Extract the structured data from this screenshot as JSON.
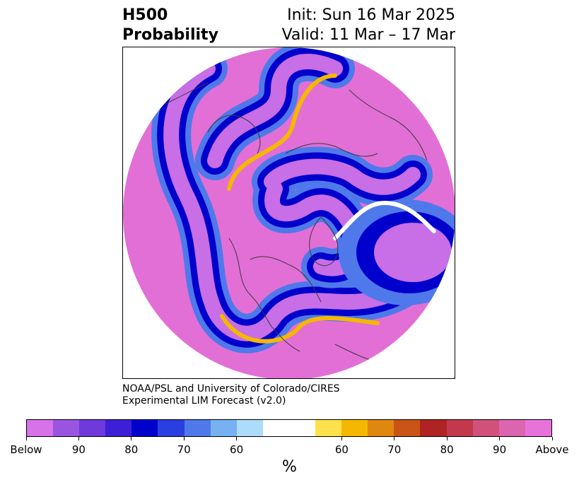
{
  "title": {
    "left_line1": "H500",
    "left_line2": "Probability",
    "right_line1": "Init: Sun 16 Mar 2025",
    "right_line2": "Valid: 11 Mar – 17 Mar"
  },
  "credit": {
    "line1": "NOAA/PSL and University of Colorado/CIRES",
    "line2": "Experimental LIM Forecast (v2.0)"
  },
  "colorbar": {
    "colors": [
      "#d772e8",
      "#9a55e0",
      "#6e3adb",
      "#3c1fd6",
      "#0000cc",
      "#2a3fe0",
      "#4f79ea",
      "#76b2f2",
      "#acdcfa",
      "#ffffff",
      "#ffffff",
      "#ffe14a",
      "#f5b800",
      "#e0870f",
      "#c95415",
      "#b02323",
      "#c2394d",
      "#d0527b",
      "#dc65b0",
      "#e673da"
    ],
    "tick_labels": [
      "Below",
      "90",
      "80",
      "70",
      "60",
      "60",
      "70",
      "80",
      "90",
      "Above"
    ],
    "unit": "%"
  },
  "map": {
    "colors": {
      "above_high": "#e26fd6",
      "above_mid": "#d0527b",
      "above_low": "#b02323",
      "neutral": "#ffffff",
      "yellow": "#f5b800",
      "below_low": "#4f79ea",
      "below_mid": "#0000cc",
      "below_high": "#c86ee6",
      "coastline": "#3a3a3a"
    }
  }
}
